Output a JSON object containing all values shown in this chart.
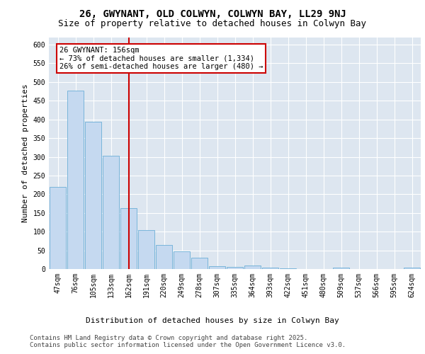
{
  "title": "26, GWYNANT, OLD COLWYN, COLWYN BAY, LL29 9NJ",
  "subtitle": "Size of property relative to detached houses in Colwyn Bay",
  "xlabel": "Distribution of detached houses by size in Colwyn Bay",
  "ylabel": "Number of detached properties",
  "categories": [
    "47sqm",
    "76sqm",
    "105sqm",
    "133sqm",
    "162sqm",
    "191sqm",
    "220sqm",
    "249sqm",
    "278sqm",
    "307sqm",
    "335sqm",
    "364sqm",
    "393sqm",
    "422sqm",
    "451sqm",
    "480sqm",
    "509sqm",
    "537sqm",
    "566sqm",
    "595sqm",
    "624sqm"
  ],
  "values": [
    220,
    478,
    393,
    303,
    163,
    105,
    65,
    47,
    31,
    8,
    5,
    9,
    3,
    2,
    0,
    0,
    3,
    0,
    0,
    0,
    3
  ],
  "bar_color": "#c5d9f0",
  "bar_edge_color": "#6baed6",
  "highlight_bar_index": 4,
  "highlight_line_color": "#cc0000",
  "annotation_line1": "26 GWYNANT: 156sqm",
  "annotation_line2": "← 73% of detached houses are smaller (1,334)",
  "annotation_line3": "26% of semi-detached houses are larger (480) →",
  "annotation_box_color": "#ffffff",
  "annotation_box_edge_color": "#cc0000",
  "ylim": [
    0,
    620
  ],
  "yticks": [
    0,
    50,
    100,
    150,
    200,
    250,
    300,
    350,
    400,
    450,
    500,
    550,
    600
  ],
  "background_color": "#dde6f0",
  "footer_text": "Contains HM Land Registry data © Crown copyright and database right 2025.\nContains public sector information licensed under the Open Government Licence v3.0.",
  "title_fontsize": 10,
  "subtitle_fontsize": 9,
  "axis_label_fontsize": 8,
  "tick_fontsize": 7,
  "footer_fontsize": 6.5,
  "annotation_fontsize": 7.5
}
